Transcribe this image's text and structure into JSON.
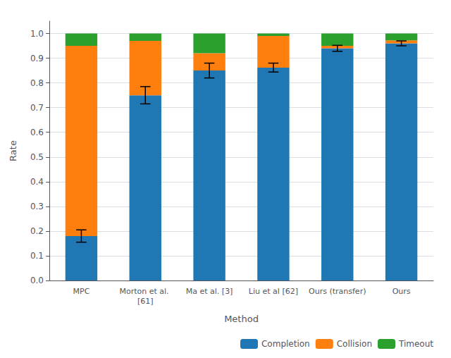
{
  "chart_data": {
    "type": "bar",
    "stacked": true,
    "categories": [
      "MPC",
      "Morton et al. [61]",
      "Ma et al. [3]",
      "Liu et al [62]",
      "Ours (transfer)",
      "Ours"
    ],
    "series": [
      {
        "name": "Completion",
        "color": "#1f77b4",
        "values": [
          0.18,
          0.75,
          0.85,
          0.862,
          0.94,
          0.96
        ],
        "error": [
          0.025,
          0.035,
          0.03,
          0.018,
          0.012,
          0.01
        ]
      },
      {
        "name": "Collision",
        "color": "#ff7f0e",
        "values": [
          0.77,
          0.22,
          0.07,
          0.128,
          0.01,
          0.012
        ]
      },
      {
        "name": "Timeout",
        "color": "#2ca02c",
        "values": [
          0.05,
          0.03,
          0.08,
          0.01,
          0.05,
          0.028
        ]
      }
    ],
    "xlabel": "Method",
    "ylabel": "Rate",
    "ylim": [
      0.0,
      1.05
    ],
    "yticks": [
      {
        "value": 0,
        "label": "0.0"
      },
      0.1,
      0.2,
      0.3,
      0.4,
      0.5,
      0.6,
      0.7,
      0.8,
      0.9,
      {
        "value": 1,
        "label": "1.0"
      }
    ],
    "grid": true,
    "legend": "lower right"
  }
}
